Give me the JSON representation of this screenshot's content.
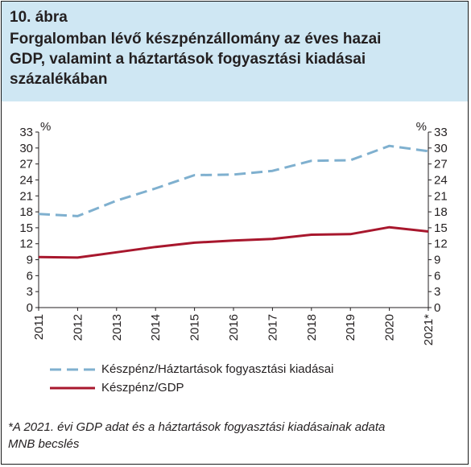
{
  "figure_label": "10. ábra",
  "title_lines": [
    "Forgalomban lévő készpénzállomány az éves hazai",
    "GDP, valamint a háztartások fogyasztási kiadásai",
    "százalékában"
  ],
  "footnote_lines": [
    "*A 2021. évi GDP adat és a háztartások fogyasztási kiadásainak adata",
    "MNB becslés"
  ],
  "colors": {
    "header_bg": "#cfe7f3",
    "series_household": "#7fb0cf",
    "series_gdp": "#a8172d",
    "axis": "#231f20"
  },
  "chart_data": {
    "type": "line",
    "x": [
      "2011",
      "2012",
      "2013",
      "2014",
      "2015",
      "2016",
      "2017",
      "2018",
      "2019",
      "2020",
      "2021*"
    ],
    "y_unit_left": "%",
    "y_unit_right": "%",
    "ylim": [
      0,
      33
    ],
    "yticks": [
      0,
      3,
      6,
      9,
      12,
      15,
      18,
      21,
      24,
      27,
      30,
      33
    ],
    "grid": false,
    "legend_position": "bottom-left",
    "series": [
      {
        "name": "Készpénz/Háztartások fogyasztási kiadásai",
        "style": "dashed",
        "color": "#7fb0cf",
        "values": [
          17.6,
          17.2,
          20.1,
          22.4,
          24.9,
          25.0,
          25.7,
          27.6,
          27.7,
          30.4,
          29.4
        ]
      },
      {
        "name": "Készpénz/GDP",
        "style": "solid",
        "color": "#a8172d",
        "values": [
          9.5,
          9.4,
          10.4,
          11.4,
          12.2,
          12.6,
          12.9,
          13.7,
          13.8,
          15.1,
          14.3
        ]
      }
    ]
  }
}
